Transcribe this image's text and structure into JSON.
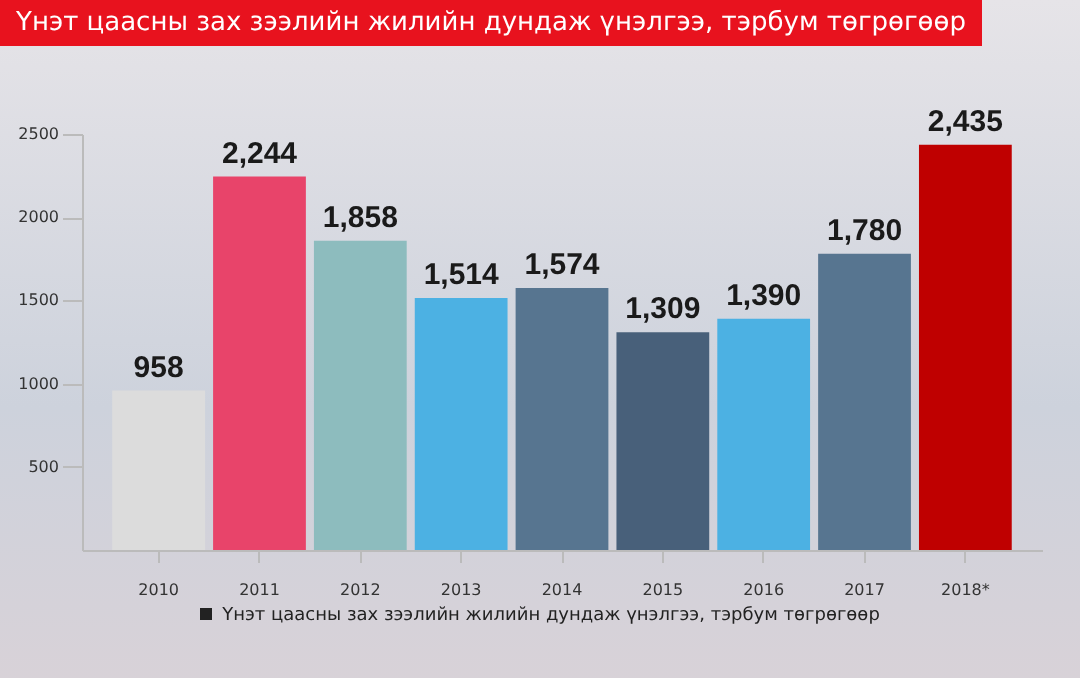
{
  "chart_data": {
    "type": "bar",
    "title": "Үнэт цаасны зах зээлийн жилийн дундаж үнэлгээ, тэрбум төгрөгөөр",
    "categories": [
      "2010",
      "2011",
      "2012",
      "2013",
      "2014",
      "2015",
      "2016",
      "2017",
      "2018*"
    ],
    "series": [
      {
        "name": "Үнэт цаасны зах зээлийн жилийн дундаж үнэлгээ, тэрбум төгрөгөөр",
        "values": [
          958,
          2244,
          1858,
          1514,
          1574,
          1309,
          1390,
          1780,
          2435
        ]
      }
    ],
    "colors": [
      "#dcdcdc",
      "#e8446a",
      "#8dbcbe",
      "#4cb1e3",
      "#577590",
      "#48607a",
      "#4cb1e3",
      "#577590",
      "#bf0000"
    ],
    "value_labels": [
      "958",
      "2,244",
      "1,858",
      "1,514",
      "1,574",
      "1,309",
      "1,390",
      "1,780",
      "2,435"
    ],
    "ylim": [
      0,
      2500
    ],
    "yticks": [
      500,
      1000,
      1500,
      2000,
      2500
    ],
    "grid": false,
    "legend": "bottom"
  }
}
